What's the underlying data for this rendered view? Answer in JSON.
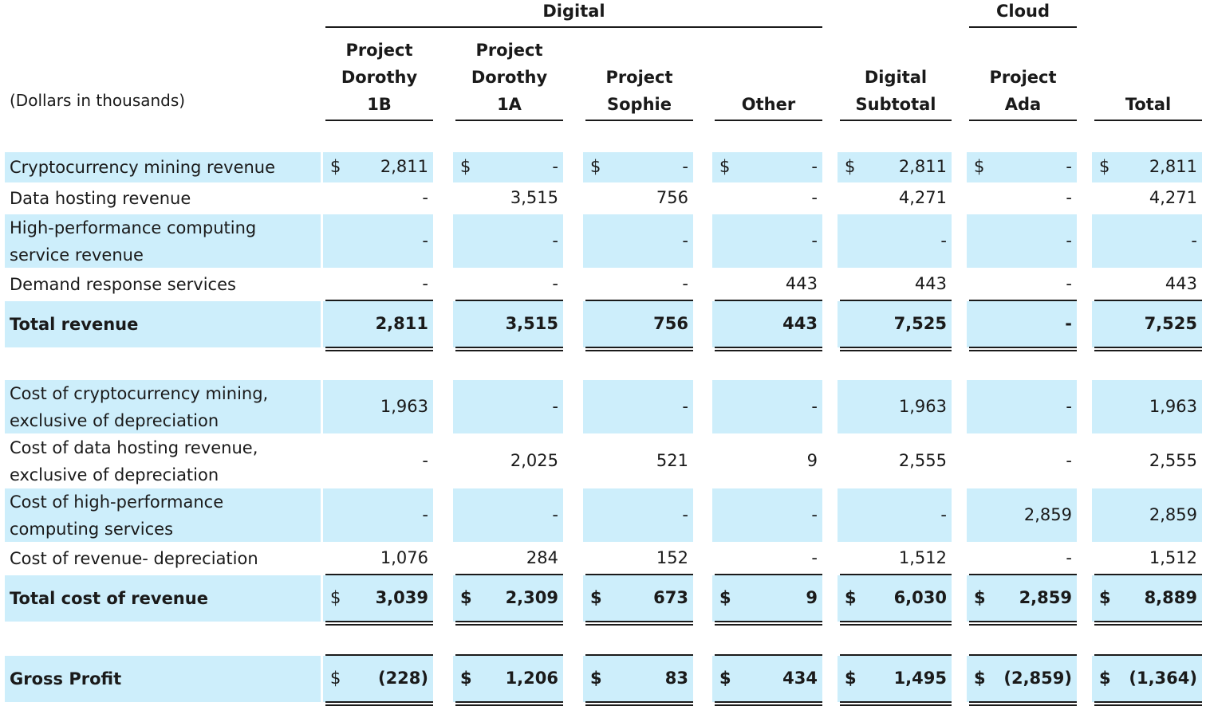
{
  "units_label": "(Dollars in thousands)",
  "groups": [
    {
      "label": "Digital"
    },
    {
      "label": "Cloud"
    }
  ],
  "columns": [
    [
      "Project",
      "Dorothy",
      "1B"
    ],
    [
      "Project",
      "Dorothy",
      "1A"
    ],
    [
      "Project",
      "Sophie"
    ],
    [
      "Other"
    ],
    [
      "Digital",
      "Subtotal"
    ],
    [
      "Project",
      "Ada"
    ],
    [
      "Total"
    ]
  ],
  "rows": [
    {
      "label": [
        "Cryptocurrency mining revenue"
      ],
      "values": [
        "2,811",
        "-",
        "-",
        "-",
        "2,811",
        "-",
        "2,811"
      ],
      "currency": "$"
    },
    {
      "label": [
        "Data hosting revenue"
      ],
      "values": [
        "-",
        "3,515",
        "756",
        "-",
        "4,271",
        "-",
        "4,271"
      ]
    },
    {
      "label": [
        "High-performance computing",
        "service revenue"
      ],
      "values": [
        "-",
        "-",
        "-",
        "-",
        "-",
        "-",
        "-"
      ]
    },
    {
      "label": [
        "Demand response services"
      ],
      "values": [
        "-",
        "-",
        "-",
        "443",
        "443",
        "-",
        "443"
      ]
    },
    {
      "label": [
        "Total revenue"
      ],
      "values": [
        "2,811",
        "3,515",
        "756",
        "443",
        "7,525",
        "-",
        "7,525"
      ]
    },
    {
      "label": [
        "Cost of cryptocurrency mining,",
        "exclusive of depreciation"
      ],
      "values": [
        "1,963",
        "-",
        "-",
        "-",
        "1,963",
        "-",
        "1,963"
      ]
    },
    {
      "label": [
        "Cost of data hosting revenue,",
        "exclusive of depreciation"
      ],
      "values": [
        "-",
        "2,025",
        "521",
        "9",
        "2,555",
        "-",
        "2,555"
      ]
    },
    {
      "label": [
        "Cost of high-performance",
        "computing services"
      ],
      "values": [
        "-",
        "-",
        "-",
        "-",
        "-",
        "2,859",
        "2,859"
      ]
    },
    {
      "label": [
        "Cost of revenue- depreciation"
      ],
      "values": [
        "1,076",
        "284",
        "152",
        "-",
        "1,512",
        "-",
        "1,512"
      ]
    },
    {
      "label": [
        "Total cost of revenue"
      ],
      "values": [
        "3,039",
        "2,309",
        "673",
        "9",
        "6,030",
        "2,859",
        "8,889"
      ],
      "currency": "$"
    },
    {
      "label": [
        "Gross Profit"
      ],
      "values": [
        "(228)",
        "1,206",
        "83",
        "434",
        "1,495",
        "(2,859)",
        "(1,364)"
      ],
      "currency": "$"
    }
  ]
}
